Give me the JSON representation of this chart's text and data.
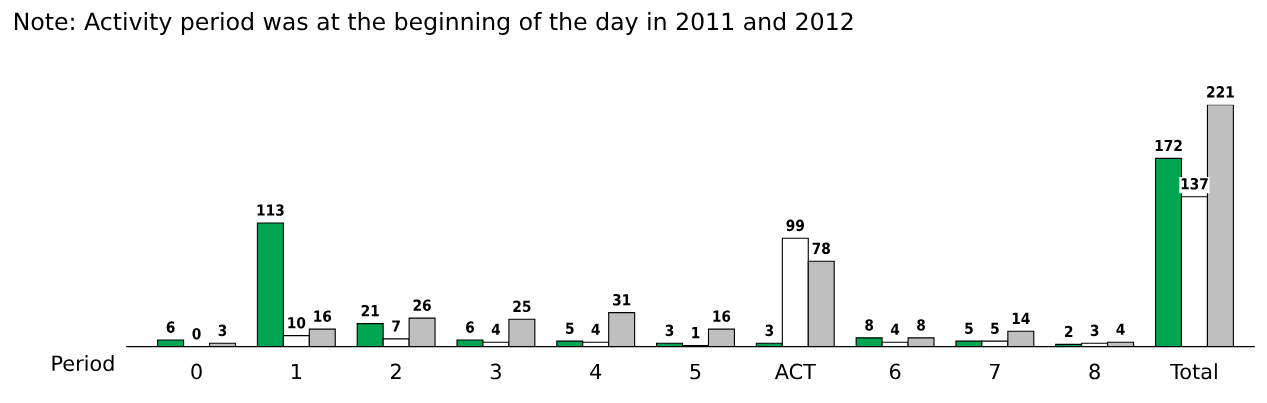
{
  "chart_data": {
    "type": "bar",
    "title": "Note: Activity period was at the beginning of the day in 2011 and 2012",
    "xlabel": "Period",
    "categories": [
      "0",
      "1",
      "2",
      "3",
      "4",
      "5",
      "ACT",
      "6",
      "7",
      "8",
      "Total"
    ],
    "series": [
      {
        "color": "#00a651",
        "values": [
          6,
          113,
          21,
          6,
          5,
          3,
          3,
          8,
          5,
          2,
          172
        ]
      },
      {
        "color": "#ffffff",
        "values": [
          0,
          10,
          7,
          4,
          4,
          1,
          99,
          4,
          5,
          3,
          137
        ]
      },
      {
        "color": "#bfbfbf",
        "values": [
          3,
          16,
          26,
          25,
          31,
          16,
          78,
          8,
          14,
          4,
          221
        ]
      }
    ],
    "data_labels": true,
    "grid": false,
    "legend": false
  }
}
